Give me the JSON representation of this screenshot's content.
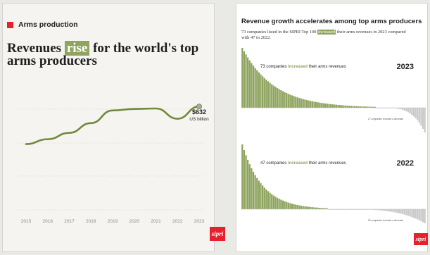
{
  "left": {
    "tag": "Arms production",
    "headline_before": "Revenues ",
    "headline_highlight": "rise",
    "headline_after": " for the world's top arms producers",
    "value_label": "$632",
    "unit_label": "US billion",
    "logo_text": "sipri"
  },
  "right": {
    "title": "Revenue growth accelerates among top arms producers",
    "desc_before": "73 companies listed in the SIPRI Top 100 ",
    "desc_highlight": "increased",
    "desc_after": " their arms revenues in 2023 compared with 47 in 2022.",
    "logo_text": "sipri"
  },
  "colors": {
    "accent": "#8fa45f",
    "line": "#6f8a3c",
    "red": "#e5212c",
    "gray_bar": "#c9c9c9"
  },
  "chart_data": [
    {
      "type": "line",
      "x": [
        "2015",
        "2016",
        "2017",
        "2018",
        "2019",
        "2020",
        "2021",
        "2022",
        "2023"
      ],
      "series": [
        {
          "values": [
            555,
            565,
            578,
            598,
            624,
            627,
            628,
            607,
            632
          ]
        }
      ],
      "ylim": [
        420,
        680
      ],
      "annotation": {
        "x": "2023",
        "value": 632,
        "text": "$632 US billion"
      }
    },
    {
      "type": "bar",
      "year": "2023",
      "label_before": "73 companies ",
      "label_highlight": "increased",
      "label_after": " their arms revenues",
      "increased_count": 73,
      "decreased_count": 27,
      "bottom_note": "27 companies recorded a decrease"
    },
    {
      "type": "bar",
      "year": "2022",
      "label_before": "47 companies ",
      "label_highlight": "increased",
      "label_after": " their arms revenues",
      "increased_count": 47,
      "decreased_count": 53,
      "bottom_note": "53 companies recorded a decrease"
    }
  ]
}
